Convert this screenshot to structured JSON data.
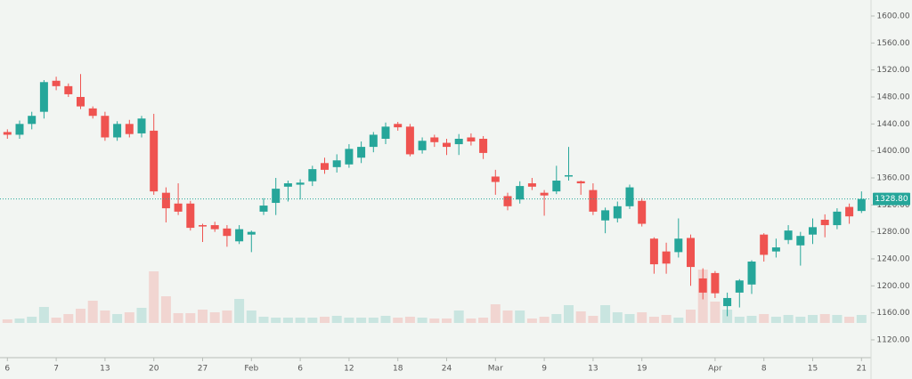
{
  "chart_data": {
    "type": "candlestick",
    "categories": [
      "6",
      null,
      null,
      null,
      "7",
      null,
      null,
      null,
      "13",
      null,
      null,
      null,
      "20",
      null,
      null,
      null,
      "27",
      null,
      null,
      null,
      "Feb",
      null,
      null,
      null,
      "6",
      null,
      null,
      null,
      "12",
      null,
      null,
      null,
      "18",
      null,
      null,
      null,
      "24",
      null,
      null,
      null,
      "Mar",
      null,
      null,
      null,
      "9",
      null,
      null,
      null,
      "13",
      null,
      null,
      null,
      "19",
      null,
      null,
      null,
      null,
      null,
      "Apr",
      null,
      null,
      null,
      "8",
      null,
      null,
      null,
      "15",
      null,
      null,
      null,
      "21"
    ],
    "open": [
      1428,
      1424,
      1440,
      1458,
      1504,
      1496,
      1480,
      1463,
      1452,
      1420,
      1440,
      1426,
      1430,
      1338,
      1322,
      1322,
      1290,
      1290,
      1285,
      1266,
      1276,
      1310,
      1323,
      1347,
      1350,
      1355,
      1382,
      1376,
      1380,
      1390,
      1406,
      1418,
      1440,
      1436,
      1401,
      1420,
      1412,
      1410,
      1420,
      1418,
      1362,
      1333,
      1328,
      1352,
      1338,
      1340,
      1362,
      1355,
      1342,
      1297,
      1300,
      1318,
      1326,
      1270,
      1251,
      1250,
      1271,
      1211,
      1219,
      1170,
      1190,
      1202,
      1276,
      1251,
      1268,
      1260,
      1276,
      1298,
      1290,
      1317,
      1311
    ],
    "high": [
      1432,
      1445,
      1458,
      1505,
      1510,
      1500,
      1514,
      1466,
      1458,
      1444,
      1446,
      1452,
      1455,
      1346,
      1352,
      1326,
      1292,
      1295,
      1290,
      1290,
      1282,
      1330,
      1360,
      1356,
      1358,
      1378,
      1390,
      1395,
      1410,
      1414,
      1428,
      1442,
      1443,
      1440,
      1420,
      1424,
      1418,
      1425,
      1426,
      1422,
      1372,
      1338,
      1355,
      1360,
      1342,
      1378,
      1406,
      1356,
      1352,
      1316,
      1325,
      1350,
      1330,
      1272,
      1264,
      1300,
      1276,
      1226,
      1222,
      1190,
      1210,
      1238,
      1278,
      1270,
      1290,
      1280,
      1300,
      1306,
      1315,
      1322,
      1340
    ],
    "low": [
      1418,
      1418,
      1432,
      1448,
      1490,
      1480,
      1462,
      1448,
      1415,
      1415,
      1420,
      1420,
      1335,
      1294,
      1305,
      1282,
      1265,
      1280,
      1258,
      1262,
      1250,
      1305,
      1305,
      1325,
      1328,
      1348,
      1366,
      1368,
      1375,
      1382,
      1398,
      1410,
      1430,
      1392,
      1396,
      1406,
      1394,
      1394,
      1408,
      1388,
      1335,
      1312,
      1322,
      1342,
      1304,
      1336,
      1356,
      1335,
      1305,
      1278,
      1294,
      1314,
      1288,
      1218,
      1218,
      1242,
      1200,
      1180,
      1182,
      1155,
      1168,
      1188,
      1236,
      1242,
      1262,
      1230,
      1262,
      1272,
      1284,
      1292,
      1308
    ],
    "close": [
      1424,
      1440,
      1452,
      1502,
      1496,
      1484,
      1466,
      1452,
      1420,
      1440,
      1425,
      1448,
      1340,
      1315,
      1310,
      1286,
      1288,
      1284,
      1274,
      1284,
      1280,
      1319,
      1344,
      1352,
      1353,
      1373,
      1372,
      1386,
      1403,
      1406,
      1424,
      1436,
      1435,
      1395,
      1415,
      1413,
      1406,
      1418,
      1414,
      1397,
      1354,
      1318,
      1348,
      1347,
      1334,
      1356,
      1364,
      1352,
      1310,
      1312,
      1318,
      1346,
      1292,
      1232,
      1233,
      1270,
      1228,
      1190,
      1189,
      1182,
      1208,
      1236,
      1246,
      1257,
      1282,
      1274,
      1287,
      1290,
      1310,
      1303,
      1328.8
    ],
    "volume": [
      4,
      5,
      7,
      18,
      6,
      10,
      16,
      25,
      14,
      10,
      12,
      17,
      58,
      30,
      11,
      11,
      15,
      12,
      14,
      27,
      14,
      7,
      6,
      6,
      6,
      6,
      7,
      8,
      6,
      6,
      6,
      8,
      6,
      7,
      6,
      5,
      5,
      14,
      5,
      6,
      21,
      14,
      14,
      5,
      7,
      10,
      20,
      13,
      8,
      20,
      12,
      10,
      12,
      7,
      9,
      6,
      15,
      60,
      24,
      15,
      7,
      8,
      10,
      7,
      9,
      7,
      9,
      10,
      9,
      7,
      9
    ],
    "up_color": "#26a69a",
    "down_color": "#ef5350",
    "ylim": [
      1093.6,
      1623.7
    ],
    "yticks": [
      {
        "value": 1600,
        "label": "1600.00"
      },
      {
        "value": 1560,
        "label": "1560.00"
      },
      {
        "value": 1520,
        "label": "1520.00"
      },
      {
        "value": 1480,
        "label": "1480.00"
      },
      {
        "value": 1440,
        "label": "1440.00"
      },
      {
        "value": 1400,
        "label": "1400.00"
      },
      {
        "value": 1360,
        "label": "1360.00"
      },
      {
        "value": 1320,
        "label": "1320.00"
      },
      {
        "value": 1280,
        "label": "1280.00"
      },
      {
        "value": 1240,
        "label": "1240.00"
      },
      {
        "value": 1200,
        "label": "1200.00"
      },
      {
        "value": 1160,
        "label": "1160.00"
      },
      {
        "value": 1120,
        "label": "1120.00"
      }
    ],
    "last_price": {
      "value": 1328.8,
      "label": "1328.80"
    }
  }
}
